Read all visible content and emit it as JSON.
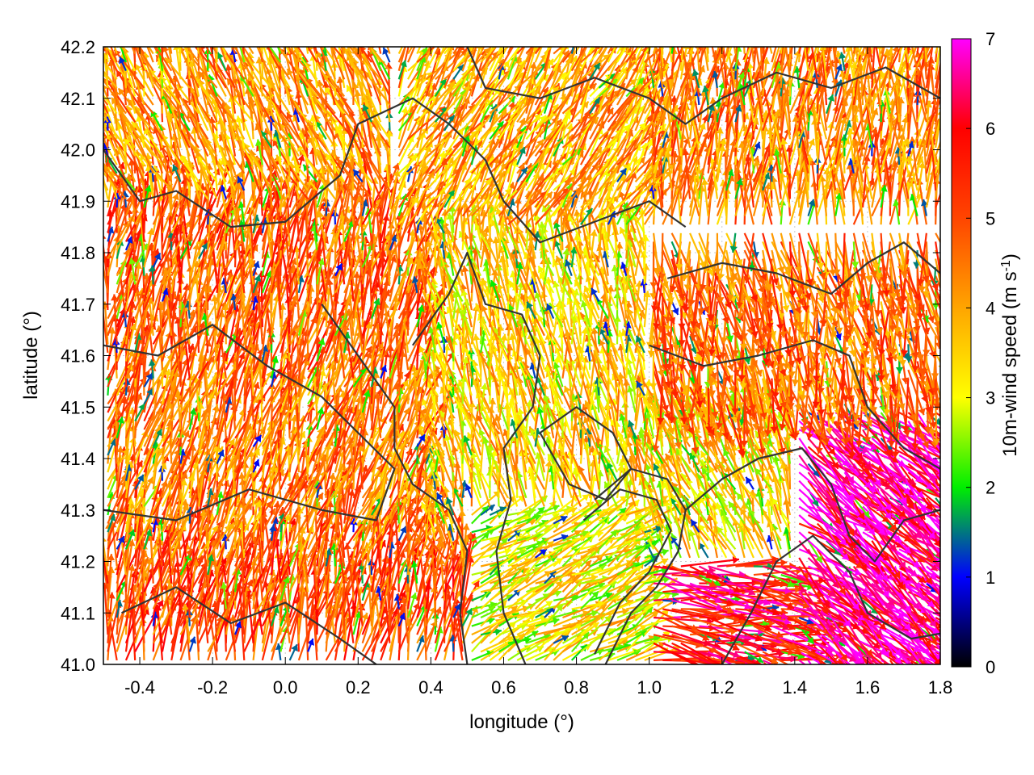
{
  "chart_data": {
    "type": "vector-field",
    "xlabel": "longitude (°)",
    "ylabel": "latitude (°)",
    "xlim": [
      -0.5,
      1.8
    ],
    "ylim": [
      41.0,
      42.2
    ],
    "xticks": [
      "-0.4",
      "-0.2",
      "0.0",
      "0.2",
      "0.4",
      "0.6",
      "0.8",
      "1.0",
      "1.2",
      "1.4",
      "1.6",
      "1.8"
    ],
    "yticks": [
      "41.0",
      "41.1",
      "41.2",
      "41.3",
      "41.4",
      "41.5",
      "41.6",
      "41.7",
      "41.8",
      "41.9",
      "42.0",
      "42.1",
      "42.2"
    ],
    "grid": true,
    "colorbar": {
      "label_main": "10m-wind speed (m s",
      "label_sup": "-1",
      "label_end": ")",
      "range": [
        0,
        7
      ],
      "ticks": [
        "0",
        "1",
        "2",
        "3",
        "4",
        "5",
        "6",
        "7"
      ],
      "stops": [
        "#000000",
        "#0000ff",
        "#00ee00",
        "#ffff00",
        "#ffa500",
        "#ff4500",
        "#ff0000",
        "#ff00ff"
      ]
    },
    "field_regions": [
      {
        "lon": [
          -0.5,
          0.3
        ],
        "lat": [
          41.9,
          42.2
        ],
        "dir_deg": 200,
        "speed": 4.2
      },
      {
        "lon": [
          -0.5,
          0.4
        ],
        "lat": [
          41.55,
          41.9
        ],
        "dir_deg": 170,
        "speed": 4.8
      },
      {
        "lon": [
          -0.5,
          0.4
        ],
        "lat": [
          41.2,
          41.55
        ],
        "dir_deg": 165,
        "speed": 4.5
      },
      {
        "lon": [
          -0.5,
          0.5
        ],
        "lat": [
          41.0,
          41.2
        ],
        "dir_deg": 170,
        "speed": 5.0
      },
      {
        "lon": [
          0.3,
          1.0
        ],
        "lat": [
          41.85,
          42.2
        ],
        "dir_deg": 150,
        "speed": 4.0
      },
      {
        "lon": [
          0.4,
          1.0
        ],
        "lat": [
          41.3,
          41.85
        ],
        "dir_deg": 190,
        "speed": 3.6
      },
      {
        "lon": [
          0.5,
          1.0
        ],
        "lat": [
          41.0,
          41.3
        ],
        "dir_deg": 120,
        "speed": 3.2
      },
      {
        "lon": [
          1.0,
          1.8
        ],
        "lat": [
          41.85,
          42.2
        ],
        "dir_deg": 175,
        "speed": 4.4
      },
      {
        "lon": [
          1.0,
          1.8
        ],
        "lat": [
          41.5,
          41.85
        ],
        "dir_deg": 10,
        "speed": 4.6
      },
      {
        "lon": [
          1.0,
          1.5
        ],
        "lat": [
          41.2,
          41.5
        ],
        "dir_deg": 200,
        "speed": 3.4
      },
      {
        "lon": [
          1.4,
          1.8
        ],
        "lat": [
          41.0,
          41.5
        ],
        "dir_deg": 50,
        "speed": 6.5
      },
      {
        "lon": [
          1.0,
          1.4
        ],
        "lat": [
          41.0,
          41.2
        ],
        "dir_deg": 80,
        "speed": 5.8
      }
    ],
    "contours": [
      [
        [
          -0.5,
          41.62
        ],
        [
          -0.35,
          41.6
        ],
        [
          -0.2,
          41.66
        ],
        [
          -0.05,
          41.58
        ],
        [
          0.1,
          41.52
        ],
        [
          0.2,
          41.45
        ],
        [
          0.3,
          41.38
        ],
        [
          0.25,
          41.28
        ],
        [
          0.1,
          41.3
        ],
        [
          -0.1,
          41.34
        ],
        [
          -0.3,
          41.28
        ],
        [
          -0.5,
          41.3
        ]
      ],
      [
        [
          -0.5,
          42.0
        ],
        [
          -0.4,
          41.9
        ],
        [
          -0.3,
          41.92
        ],
        [
          -0.15,
          41.85
        ],
        [
          0.0,
          41.86
        ],
        [
          0.15,
          41.95
        ],
        [
          0.2,
          42.05
        ],
        [
          0.35,
          42.1
        ],
        [
          0.45,
          42.05
        ],
        [
          0.55,
          41.98
        ],
        [
          0.6,
          41.9
        ],
        [
          0.7,
          41.82
        ],
        [
          0.85,
          41.86
        ],
        [
          1.0,
          41.9
        ],
        [
          1.1,
          41.85
        ]
      ],
      [
        [
          0.1,
          41.7
        ],
        [
          0.2,
          41.6
        ],
        [
          0.3,
          41.5
        ],
        [
          0.3,
          41.42
        ],
        [
          0.35,
          41.35
        ],
        [
          0.45,
          41.3
        ],
        [
          0.5,
          41.22
        ],
        [
          0.48,
          41.1
        ],
        [
          0.5,
          41.0
        ]
      ],
      [
        [
          0.35,
          41.62
        ],
        [
          0.45,
          41.72
        ],
        [
          0.5,
          41.8
        ],
        [
          0.55,
          41.7
        ],
        [
          0.65,
          41.68
        ],
        [
          0.7,
          41.6
        ],
        [
          0.68,
          41.5
        ],
        [
          0.6,
          41.42
        ],
        [
          0.62,
          41.32
        ],
        [
          0.58,
          41.22
        ],
        [
          0.6,
          41.1
        ],
        [
          0.66,
          41.0
        ]
      ],
      [
        [
          0.85,
          41.32
        ],
        [
          0.95,
          41.38
        ],
        [
          1.05,
          41.36
        ],
        [
          1.1,
          41.3
        ],
        [
          1.08,
          41.22
        ],
        [
          1.02,
          41.15
        ],
        [
          0.95,
          41.1
        ],
        [
          0.88,
          41.0
        ]
      ],
      [
        [
          0.82,
          41.28
        ],
        [
          0.92,
          41.34
        ],
        [
          1.02,
          41.32
        ],
        [
          1.06,
          41.26
        ],
        [
          1.0,
          41.18
        ],
        [
          0.92,
          41.12
        ],
        [
          0.85,
          41.02
        ]
      ],
      [
        [
          1.0,
          41.62
        ],
        [
          1.15,
          41.58
        ],
        [
          1.3,
          41.6
        ],
        [
          1.45,
          41.63
        ],
        [
          1.55,
          41.6
        ],
        [
          1.6,
          41.5
        ],
        [
          1.7,
          41.42
        ],
        [
          1.8,
          41.38
        ]
      ],
      [
        [
          1.05,
          41.75
        ],
        [
          1.2,
          41.78
        ],
        [
          1.35,
          41.76
        ],
        [
          1.5,
          41.72
        ],
        [
          1.6,
          41.78
        ],
        [
          1.7,
          41.82
        ],
        [
          1.8,
          41.76
        ]
      ],
      [
        [
          1.1,
          41.3
        ],
        [
          1.2,
          41.36
        ],
        [
          1.3,
          41.4
        ],
        [
          1.42,
          41.42
        ],
        [
          1.5,
          41.35
        ],
        [
          1.55,
          41.25
        ],
        [
          1.62,
          41.2
        ],
        [
          1.7,
          41.28
        ],
        [
          1.8,
          41.3
        ]
      ],
      [
        [
          0.5,
          42.2
        ],
        [
          0.55,
          42.12
        ],
        [
          0.7,
          42.1
        ],
        [
          0.85,
          42.14
        ],
        [
          1.0,
          42.1
        ],
        [
          1.1,
          42.05
        ],
        [
          1.2,
          42.1
        ],
        [
          1.35,
          42.15
        ],
        [
          1.5,
          42.12
        ],
        [
          1.65,
          42.16
        ],
        [
          1.8,
          42.1
        ]
      ],
      [
        [
          -0.45,
          41.1
        ],
        [
          -0.3,
          41.15
        ],
        [
          -0.15,
          41.08
        ],
        [
          0.0,
          41.12
        ],
        [
          0.15,
          41.05
        ],
        [
          0.25,
          41.0
        ]
      ],
      [
        [
          0.7,
          41.45
        ],
        [
          0.8,
          41.5
        ],
        [
          0.9,
          41.45
        ],
        [
          0.95,
          41.38
        ],
        [
          0.88,
          41.32
        ],
        [
          0.78,
          41.35
        ],
        [
          0.7,
          41.45
        ]
      ],
      [
        [
          1.2,
          41.0
        ],
        [
          1.28,
          41.1
        ],
        [
          1.35,
          41.2
        ],
        [
          1.45,
          41.25
        ],
        [
          1.55,
          41.18
        ],
        [
          1.6,
          41.1
        ],
        [
          1.72,
          41.05
        ],
        [
          1.8,
          41.06
        ]
      ]
    ]
  }
}
